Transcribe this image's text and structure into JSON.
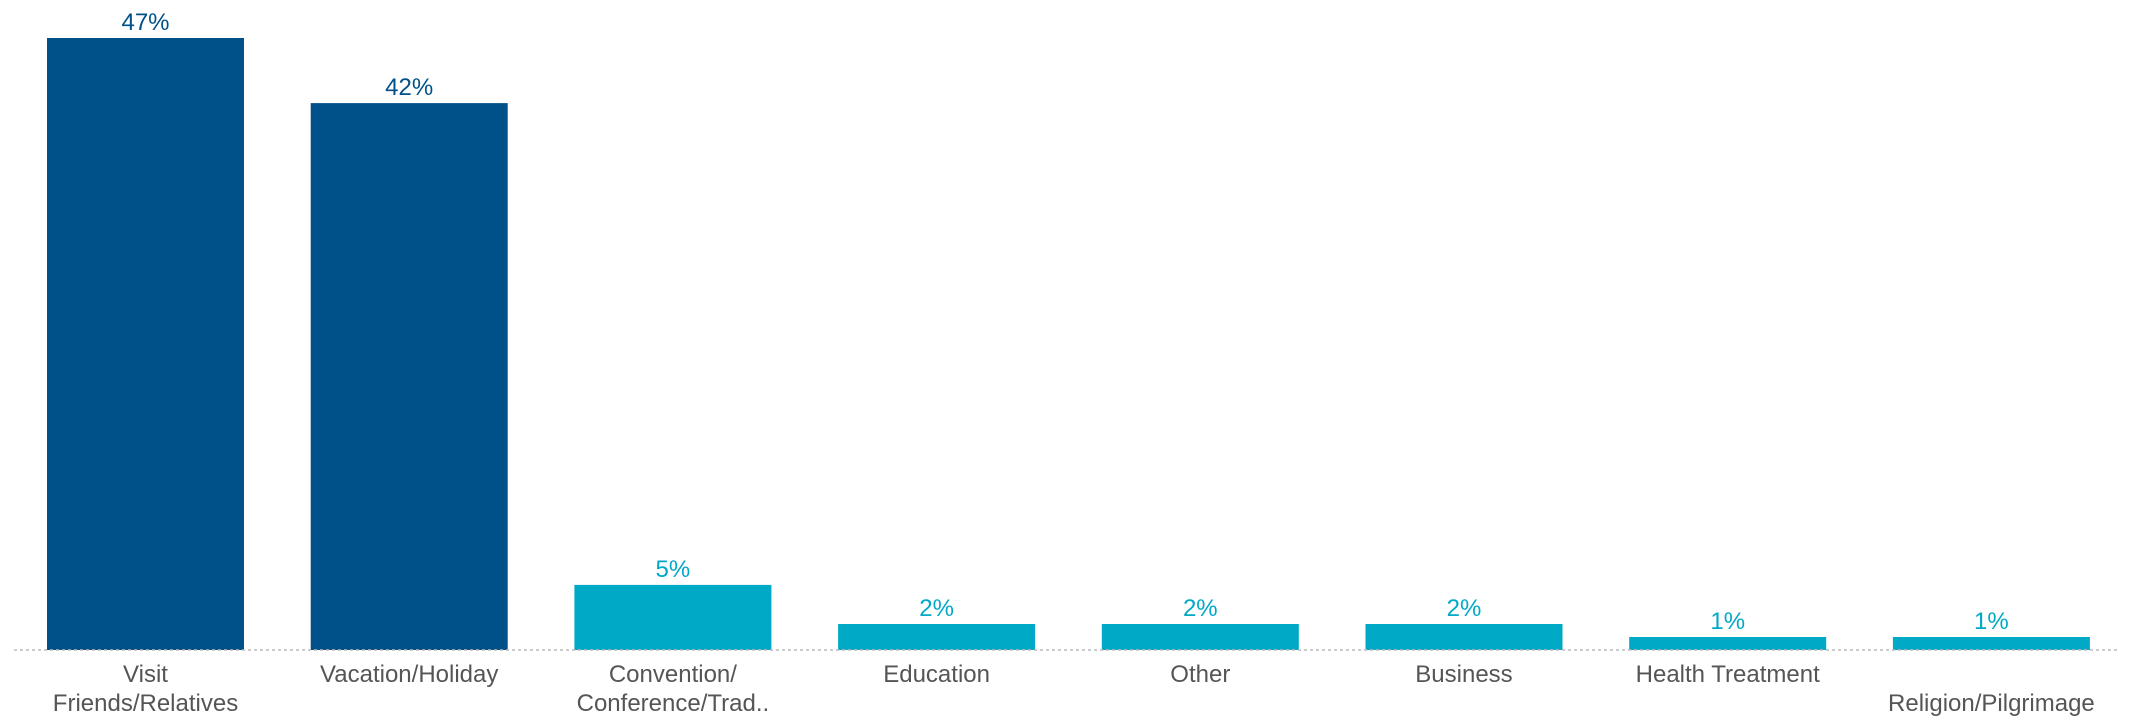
{
  "chart_data": {
    "type": "bar",
    "title": "",
    "xlabel": "",
    "ylabel": "",
    "categories": [
      "Visit Friends/Relatives",
      "Vacation/Holiday",
      "Convention/ Conference/Trad..",
      "Education",
      "Other",
      "Business",
      "Health Treatment",
      "Religion/Pilgrimage"
    ],
    "values": [
      47,
      42,
      5,
      2,
      2,
      2,
      1,
      1
    ],
    "value_labels": [
      "47%",
      "42%",
      "5%",
      "2%",
      "2%",
      "2%",
      "1%",
      "1%"
    ],
    "ylim": [
      0,
      47
    ],
    "grid": false,
    "colors": {
      "top_two": "#005189",
      "others": "#00A9C6",
      "baseline": "#BBBBBB",
      "category_text": "#555555"
    },
    "bar_colors": [
      "#005189",
      "#005189",
      "#00A9C6",
      "#00A9C6",
      "#00A9C6",
      "#00A9C6",
      "#00A9C6",
      "#00A9C6"
    ]
  }
}
